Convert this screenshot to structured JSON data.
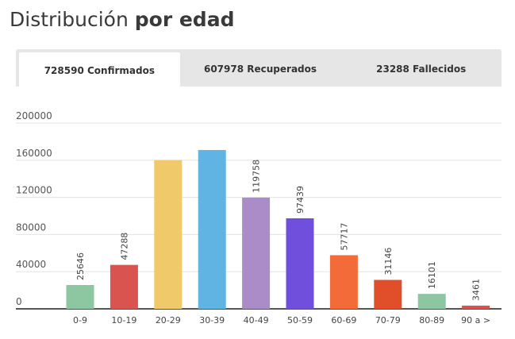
{
  "header": {
    "title_light": "Distribución",
    "title_bold": "por edad"
  },
  "tabs": [
    {
      "label": "728590 Confirmados",
      "active": true
    },
    {
      "label": "607978 Recuperados",
      "active": false
    },
    {
      "label": "23288 Fallecidos",
      "active": false
    }
  ],
  "chart_data": {
    "type": "bar",
    "categories": [
      "0-9",
      "10-19",
      "20-29",
      "30-39",
      "40-49",
      "50-59",
      "60-69",
      "70-79",
      "80-89",
      "90 a >"
    ],
    "values": [
      25646,
      47288,
      160000,
      171000,
      119758,
      97439,
      57717,
      31146,
      16101,
      3461
    ],
    "data_labels": [
      "25646",
      "47288",
      "",
      "",
      "119758",
      "97439",
      "57717",
      "31146",
      "16101",
      "3461"
    ],
    "colors": [
      "#8cc7a1",
      "#d9534f",
      "#f0c96a",
      "#5fb4e3",
      "#a98cc8",
      "#6f4fdc",
      "#f26b38",
      "#e04f2a",
      "#8cc7a1",
      "#d9534f"
    ],
    "yticks": [
      "0",
      "40000",
      "80000",
      "120000",
      "160000",
      "200000"
    ],
    "ylim": [
      0,
      200000
    ],
    "grid": true,
    "title": "",
    "xlabel": "",
    "ylabel": ""
  }
}
